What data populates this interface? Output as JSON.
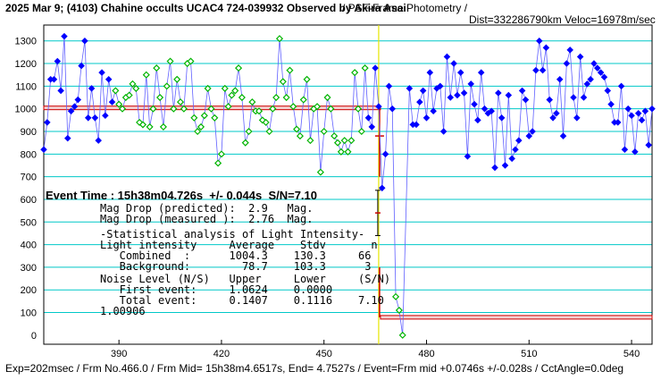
{
  "header": {
    "title": "2025 Mar 9; (4103) Chahine occults UCAC4 724-039932 Observed by Akira Asai",
    "subtitle_right": "/ PSF-Frame Photometry /",
    "subtitle_line2": "Dist=332286790km Veloc=16978m/sec"
  },
  "footer": {
    "text": "Exp=202msec / Frm No.466.0 / Frm Mid= 15h38m4.6517s, End= 4.7527s / Event=Frm mid +0.0746s +/-0.028s / CctAngle=0.0deg"
  },
  "annotation": {
    "event_time": "Event Time : 15h38m04.726s  +/- 0.044s  S/N=7.10",
    "mag_drop_predicted": "Mag Drop (predicted):  2.9   Mag.",
    "mag_drop_measured": "Mag Drop (measured ):  2.76  Mag.",
    "stat_header": "-Statistical analysis of Light Intensity-",
    "li_header": "Light intensity     Average    Stdv       n",
    "li_combined": "   Combined  :      1004.3    130.3     66",
    "li_background": "   Background:        78.7    103.3      3",
    "nl_header": "Noise Level (N/S)   Upper     Lower     (S/N)",
    "nl_first": "   First event:     1.0624    0.0000",
    "nl_total": "   Total event:     0.1407    0.1116    7.10",
    "ratio": "1.00906"
  },
  "colors": {
    "grid": "#00c8c8",
    "blue_points": "#0000ff",
    "green_points": "#00b400",
    "level_line": "#cc0000",
    "event_line": "#e6e600",
    "connector": "#6060ff"
  },
  "chart_data": {
    "type": "scatter",
    "x_ticks": [
      390,
      420,
      450,
      480,
      510,
      540
    ],
    "y_ticks": [
      0,
      100,
      200,
      300,
      400,
      500,
      600,
      700,
      800,
      900,
      1000,
      1100,
      1200,
      1300
    ],
    "xlim": [
      368,
      546
    ],
    "ylim": [
      -40,
      1370
    ],
    "grid": true,
    "event_frame": 466,
    "upper_level": 1004,
    "lower_level": 79,
    "series": [
      {
        "points": [
          [
            368,
            820
          ],
          [
            369,
            940
          ],
          [
            370,
            1130
          ],
          [
            371,
            1130
          ],
          [
            372,
            1210
          ],
          [
            373,
            1080
          ],
          [
            374,
            1320
          ],
          [
            375,
            870
          ],
          [
            376,
            990
          ],
          [
            377,
            1010
          ],
          [
            378,
            1040
          ],
          [
            379,
            1190
          ],
          [
            380,
            1300
          ],
          [
            381,
            960
          ],
          [
            382,
            1090
          ],
          [
            383,
            960
          ],
          [
            384,
            860
          ],
          [
            385,
            1160
          ],
          [
            386,
            970
          ],
          [
            387,
            1130
          ],
          [
            388,
            1030
          ],
          [
            463,
            960
          ],
          [
            464,
            920
          ],
          [
            465,
            1180
          ],
          [
            466,
            1010
          ],
          [
            467,
            650
          ],
          [
            468,
            800
          ],
          [
            469,
            1100
          ],
          [
            470,
            1000
          ],
          [
            475,
            1090
          ],
          [
            476,
            930
          ],
          [
            477,
            930
          ],
          [
            478,
            1030
          ],
          [
            479,
            1080
          ],
          [
            480,
            960
          ],
          [
            481,
            1160
          ],
          [
            482,
            990
          ],
          [
            483,
            1090
          ],
          [
            484,
            1100
          ],
          [
            485,
            900
          ],
          [
            486,
            1230
          ],
          [
            487,
            1050
          ],
          [
            488,
            1200
          ],
          [
            489,
            1060
          ],
          [
            490,
            1160
          ],
          [
            491,
            1070
          ],
          [
            492,
            790
          ],
          [
            493,
            1110
          ],
          [
            494,
            1020
          ],
          [
            495,
            950
          ],
          [
            496,
            1160
          ],
          [
            497,
            1000
          ],
          [
            498,
            980
          ],
          [
            499,
            990
          ],
          [
            500,
            740
          ],
          [
            501,
            1070
          ],
          [
            502,
            960
          ],
          [
            503,
            750
          ],
          [
            504,
            1060
          ],
          [
            505,
            780
          ],
          [
            506,
            820
          ],
          [
            507,
            860
          ],
          [
            508,
            1080
          ],
          [
            509,
            1040
          ],
          [
            510,
            880
          ],
          [
            511,
            900
          ],
          [
            512,
            1170
          ],
          [
            513,
            1300
          ],
          [
            514,
            1170
          ],
          [
            515,
            1270
          ],
          [
            516,
            1040
          ],
          [
            517,
            960
          ],
          [
            518,
            980
          ],
          [
            519,
            1130
          ],
          [
            520,
            880
          ],
          [
            521,
            1200
          ],
          [
            522,
            1260
          ],
          [
            523,
            1050
          ],
          [
            524,
            960
          ],
          [
            525,
            1230
          ],
          [
            526,
            1050
          ],
          [
            527,
            1110
          ],
          [
            528,
            1130
          ],
          [
            529,
            1200
          ],
          [
            530,
            1180
          ],
          [
            531,
            1160
          ],
          [
            532,
            1140
          ],
          [
            533,
            1080
          ],
          [
            534,
            1020
          ],
          [
            535,
            940
          ],
          [
            536,
            940
          ],
          [
            537,
            1100
          ],
          [
            538,
            820
          ],
          [
            539,
            1000
          ],
          [
            540,
            970
          ],
          [
            541,
            810
          ],
          [
            542,
            980
          ],
          [
            543,
            950
          ],
          [
            544,
            990
          ],
          [
            545,
            840
          ],
          [
            546,
            1000
          ]
        ]
      },
      {
        "points": [
          [
            389,
            1080
          ],
          [
            390,
            1020
          ],
          [
            391,
            1000
          ],
          [
            392,
            1050
          ],
          [
            393,
            1060
          ],
          [
            394,
            1110
          ],
          [
            395,
            1090
          ],
          [
            396,
            940
          ],
          [
            397,
            930
          ],
          [
            398,
            1150
          ],
          [
            399,
            920
          ],
          [
            400,
            1000
          ],
          [
            401,
            1180
          ],
          [
            402,
            1050
          ],
          [
            403,
            920
          ],
          [
            404,
            1100
          ],
          [
            405,
            1210
          ],
          [
            406,
            1000
          ],
          [
            407,
            1130
          ],
          [
            408,
            1030
          ],
          [
            409,
            1000
          ],
          [
            410,
            1200
          ],
          [
            411,
            1210
          ],
          [
            412,
            960
          ],
          [
            413,
            900
          ],
          [
            414,
            920
          ],
          [
            415,
            970
          ],
          [
            416,
            1090
          ],
          [
            417,
            1000
          ],
          [
            418,
            960
          ],
          [
            419,
            760
          ],
          [
            420,
            800
          ],
          [
            421,
            1090
          ],
          [
            422,
            1010
          ],
          [
            423,
            1060
          ],
          [
            424,
            1080
          ],
          [
            425,
            1180
          ],
          [
            426,
            1050
          ],
          [
            427,
            850
          ],
          [
            428,
            900
          ],
          [
            429,
            1030
          ],
          [
            430,
            990
          ],
          [
            431,
            990
          ],
          [
            432,
            950
          ],
          [
            433,
            940
          ],
          [
            434,
            900
          ],
          [
            435,
            1000
          ],
          [
            436,
            1050
          ],
          [
            437,
            1310
          ],
          [
            438,
            1120
          ],
          [
            439,
            1050
          ],
          [
            440,
            1170
          ],
          [
            441,
            1010
          ],
          [
            442,
            910
          ],
          [
            443,
            880
          ],
          [
            444,
            1040
          ],
          [
            445,
            1130
          ],
          [
            446,
            860
          ],
          [
            447,
            1000
          ],
          [
            448,
            1010
          ],
          [
            449,
            720
          ],
          [
            450,
            900
          ],
          [
            451,
            1050
          ],
          [
            452,
            1000
          ],
          [
            453,
            880
          ],
          [
            454,
            850
          ],
          [
            455,
            810
          ],
          [
            456,
            860
          ],
          [
            457,
            810
          ],
          [
            458,
            860
          ],
          [
            459,
            1160
          ],
          [
            460,
            1000
          ],
          [
            461,
            900
          ],
          [
            462,
            1180
          ],
          [
            471,
            170
          ],
          [
            472,
            110
          ],
          [
            473,
            0
          ]
        ]
      }
    ]
  }
}
